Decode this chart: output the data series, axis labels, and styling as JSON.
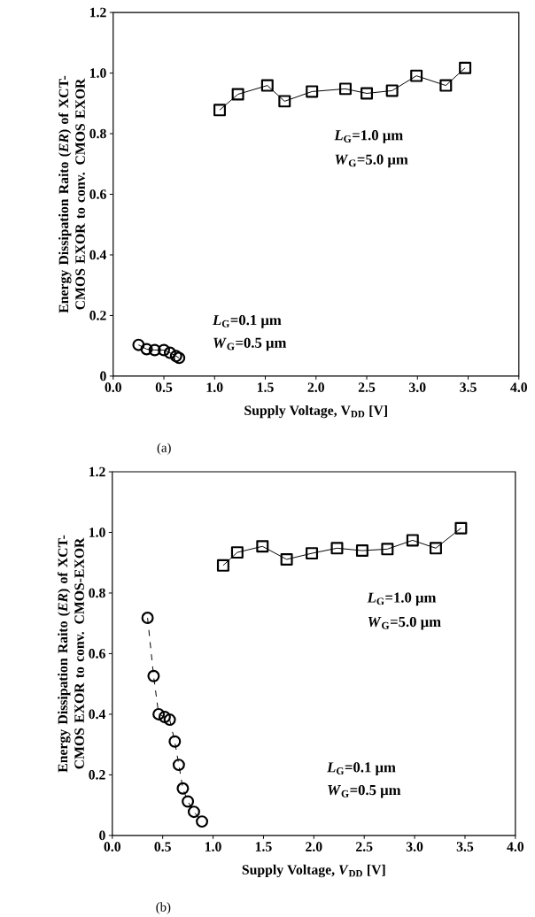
{
  "chart_data": [
    {
      "type": "line",
      "xlabel": "Supply Voltage, V$_{DD}$ [V]",
      "ylabel": "Energy Dissipation Raito (*ER*) of XCT-CMOS EXOR to conv. CMOS EXOR",
      "xlim": [
        0,
        4
      ],
      "ylim": [
        0,
        1.2
      ],
      "xticks": [
        {
          "value": 0,
          "label": "0.0"
        },
        0.5,
        {
          "value": 1,
          "label": "1.0"
        },
        1.5,
        {
          "value": 2,
          "label": "2.0"
        },
        2.5,
        {
          "value": 3,
          "label": "3.0"
        },
        3.5,
        {
          "value": 4,
          "label": "4.0"
        }
      ],
      "yticks": [
        0,
        0.2,
        0.4,
        0.6,
        0.8,
        {
          "value": 1,
          "label": "1.0"
        },
        1.2
      ],
      "series": [
        {
          "color": "#000000",
          "marker": "square",
          "line_style": "solid",
          "x": [
            1.05,
            1.23,
            1.52,
            1.69,
            1.96,
            2.29,
            2.5,
            2.75,
            2.99,
            3.28,
            3.47
          ],
          "values": [
            0.878,
            0.93,
            0.959,
            0.907,
            0.939,
            0.948,
            0.933,
            0.942,
            0.991,
            0.959,
            1.017
          ]
        },
        {
          "color": "#000000",
          "marker": "circle",
          "line_style": "solid",
          "x": [
            0.25,
            0.33,
            0.41,
            0.5,
            0.56,
            0.62,
            0.65
          ],
          "values": [
            0.103,
            0.089,
            0.086,
            0.086,
            0.077,
            0.066,
            0.06
          ]
        }
      ],
      "annotations": [
        "(a)",
        "*L*$_{G}$=1.0 μm",
        "*W*$_{G}$=5.0 μm",
        "*L*$_{G}$=0.1 μm",
        "*W*$_{G}$=0.5 μm"
      ]
    },
    {
      "type": "line",
      "xlabel": "Supply Voltage, *V*$_{DD}$ [V]",
      "ylabel": "Energy Dissipation Raito (*ER*) of XCT-CMOS EXOR to conv. CMOS-EXOR",
      "xlim": [
        0,
        4
      ],
      "ylim": [
        0,
        1.2
      ],
      "xticks": [
        {
          "value": 0,
          "label": "0.0"
        },
        0.5,
        {
          "value": 1,
          "label": "1.0"
        },
        1.5,
        {
          "value": 2,
          "label": "2.0"
        },
        2.5,
        {
          "value": 3,
          "label": "3.0"
        },
        3.5,
        {
          "value": 4,
          "label": "4.0"
        }
      ],
      "yticks": [
        0,
        0.2,
        0.4,
        0.6,
        0.8,
        {
          "value": 1,
          "label": "1.0"
        },
        1.2
      ],
      "series": [
        {
          "color": "#000000",
          "marker": "square",
          "line_style": "solid",
          "x": [
            1.1,
            1.24,
            1.49,
            1.73,
            1.98,
            2.23,
            2.48,
            2.73,
            2.98,
            3.21,
            3.46
          ],
          "values": [
            0.891,
            0.934,
            0.954,
            0.911,
            0.931,
            0.948,
            0.94,
            0.945,
            0.974,
            0.948,
            1.014
          ]
        },
        {
          "color": "#000000",
          "marker": "circle",
          "line_style": "dashed",
          "x": [
            0.35,
            0.41,
            0.46,
            0.52,
            0.57,
            0.62,
            0.66,
            0.7,
            0.75,
            0.81,
            0.89
          ],
          "values": [
            0.718,
            0.526,
            0.4,
            0.391,
            0.382,
            0.31,
            0.233,
            0.155,
            0.112,
            0.078,
            0.046
          ]
        }
      ],
      "annotations": [
        "(b)",
        "*L*$_{G}$=1.0 μm",
        "*W*$_{G}$=5.0 μm",
        "*L*$_{G}$=0.1 μm",
        "*W*$_{G}$=0.5 μm"
      ]
    }
  ]
}
